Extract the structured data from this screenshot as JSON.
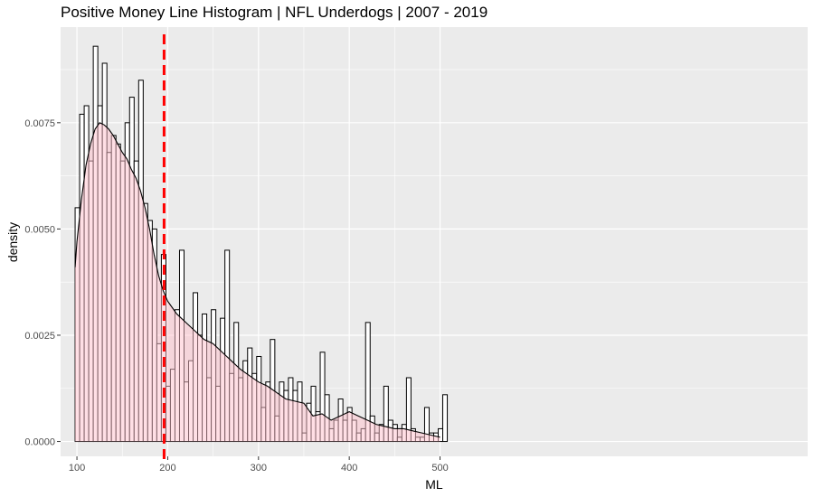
{
  "chart_data": {
    "type": "bar",
    "title": "Positive Money Line Histogram | NFL Underdogs | 2007 - 2019",
    "xlabel": "ML",
    "ylabel": "density",
    "xlim": [
      82,
      905
    ],
    "ylim": [
      -0.00035,
      0.00975
    ],
    "x_ticks": [
      100,
      200,
      300,
      400,
      500
    ],
    "y_ticks": [
      0.0,
      0.0025,
      0.005,
      0.0075
    ],
    "y_tick_labels": [
      "0.0000",
      "0.0025",
      "0.0050",
      "0.0075"
    ],
    "x_tick_labels": [
      "100",
      "200",
      "300",
      "400",
      "500"
    ],
    "grid": true,
    "bin_start": 98,
    "bin_width": 5,
    "histogram_values": [
      0.0055,
      0.0077,
      0.0079,
      0.0066,
      0.0093,
      0.0079,
      0.0089,
      0.0068,
      0.0072,
      0.007,
      0.0066,
      0.0075,
      0.0081,
      0.0066,
      0.0085,
      0.0056,
      0.0052,
      0.005,
      0.0023,
      0.0044,
      0.0013,
      0.0017,
      0.0031,
      0.0045,
      0.0014,
      0.0019,
      0.0035,
      0.0025,
      0.003,
      0.0015,
      0.0031,
      0.0013,
      0.0029,
      0.0045,
      0.0016,
      0.0028,
      0.0015,
      0.0019,
      0.0022,
      0.0016,
      0.002,
      0.0008,
      0.0014,
      0.0024,
      0.0006,
      0.0014,
      0.0012,
      0.0015,
      0.0012,
      0.0014,
      0.0002,
      0.0009,
      0.0013,
      0.0007,
      0.0021,
      0.0011,
      0.0003,
      0.0005,
      0.001,
      0.0005,
      0.0008,
      0.0005,
      0.0002,
      0.0003,
      0.0028,
      0.0006,
      0.0002,
      0.0004,
      0.0013,
      0.0005,
      0.0004,
      0.0001,
      0.0004,
      0.0015,
      0.0003,
      0.0001,
      0.0001,
      0.0008,
      0.0002,
      0.0002,
      0.0003,
      0.0011
    ],
    "density_curve": {
      "x": [
        98,
        100,
        105,
        110,
        115,
        120,
        125,
        130,
        135,
        140,
        145,
        150,
        155,
        160,
        165,
        170,
        175,
        180,
        185,
        190,
        195,
        200,
        210,
        220,
        230,
        240,
        250,
        260,
        270,
        280,
        290,
        300,
        310,
        320,
        330,
        340,
        350,
        360,
        370,
        380,
        390,
        400,
        410,
        420,
        430,
        440,
        450,
        460,
        470,
        480,
        490,
        500
      ],
      "y": [
        0.0041,
        0.0047,
        0.0057,
        0.0065,
        0.007,
        0.00735,
        0.0075,
        0.00745,
        0.00735,
        0.0072,
        0.007,
        0.0068,
        0.00665,
        0.0064,
        0.0062,
        0.0059,
        0.0055,
        0.005,
        0.0044,
        0.0039,
        0.00355,
        0.0033,
        0.003,
        0.0028,
        0.0026,
        0.0024,
        0.0023,
        0.0021,
        0.0019,
        0.0017,
        0.00155,
        0.0014,
        0.0013,
        0.00115,
        0.001,
        0.00095,
        0.0009,
        0.0006,
        0.00065,
        0.0005,
        0.0006,
        0.0007,
        0.0006,
        0.0005,
        0.0004,
        0.00035,
        0.0003,
        0.0003,
        0.00025,
        0.0002,
        0.00015,
        0.0001
      ]
    },
    "mean_line_x": 196,
    "colors": {
      "panel_bg": "#EBEBEB",
      "grid": "#FFFFFF",
      "histogram_fill": "#FFFFFF",
      "histogram_stroke": "#000000",
      "density_fill": "#FFC0CB",
      "density_stroke": "#000000",
      "mean_line": "#FF0000"
    }
  }
}
